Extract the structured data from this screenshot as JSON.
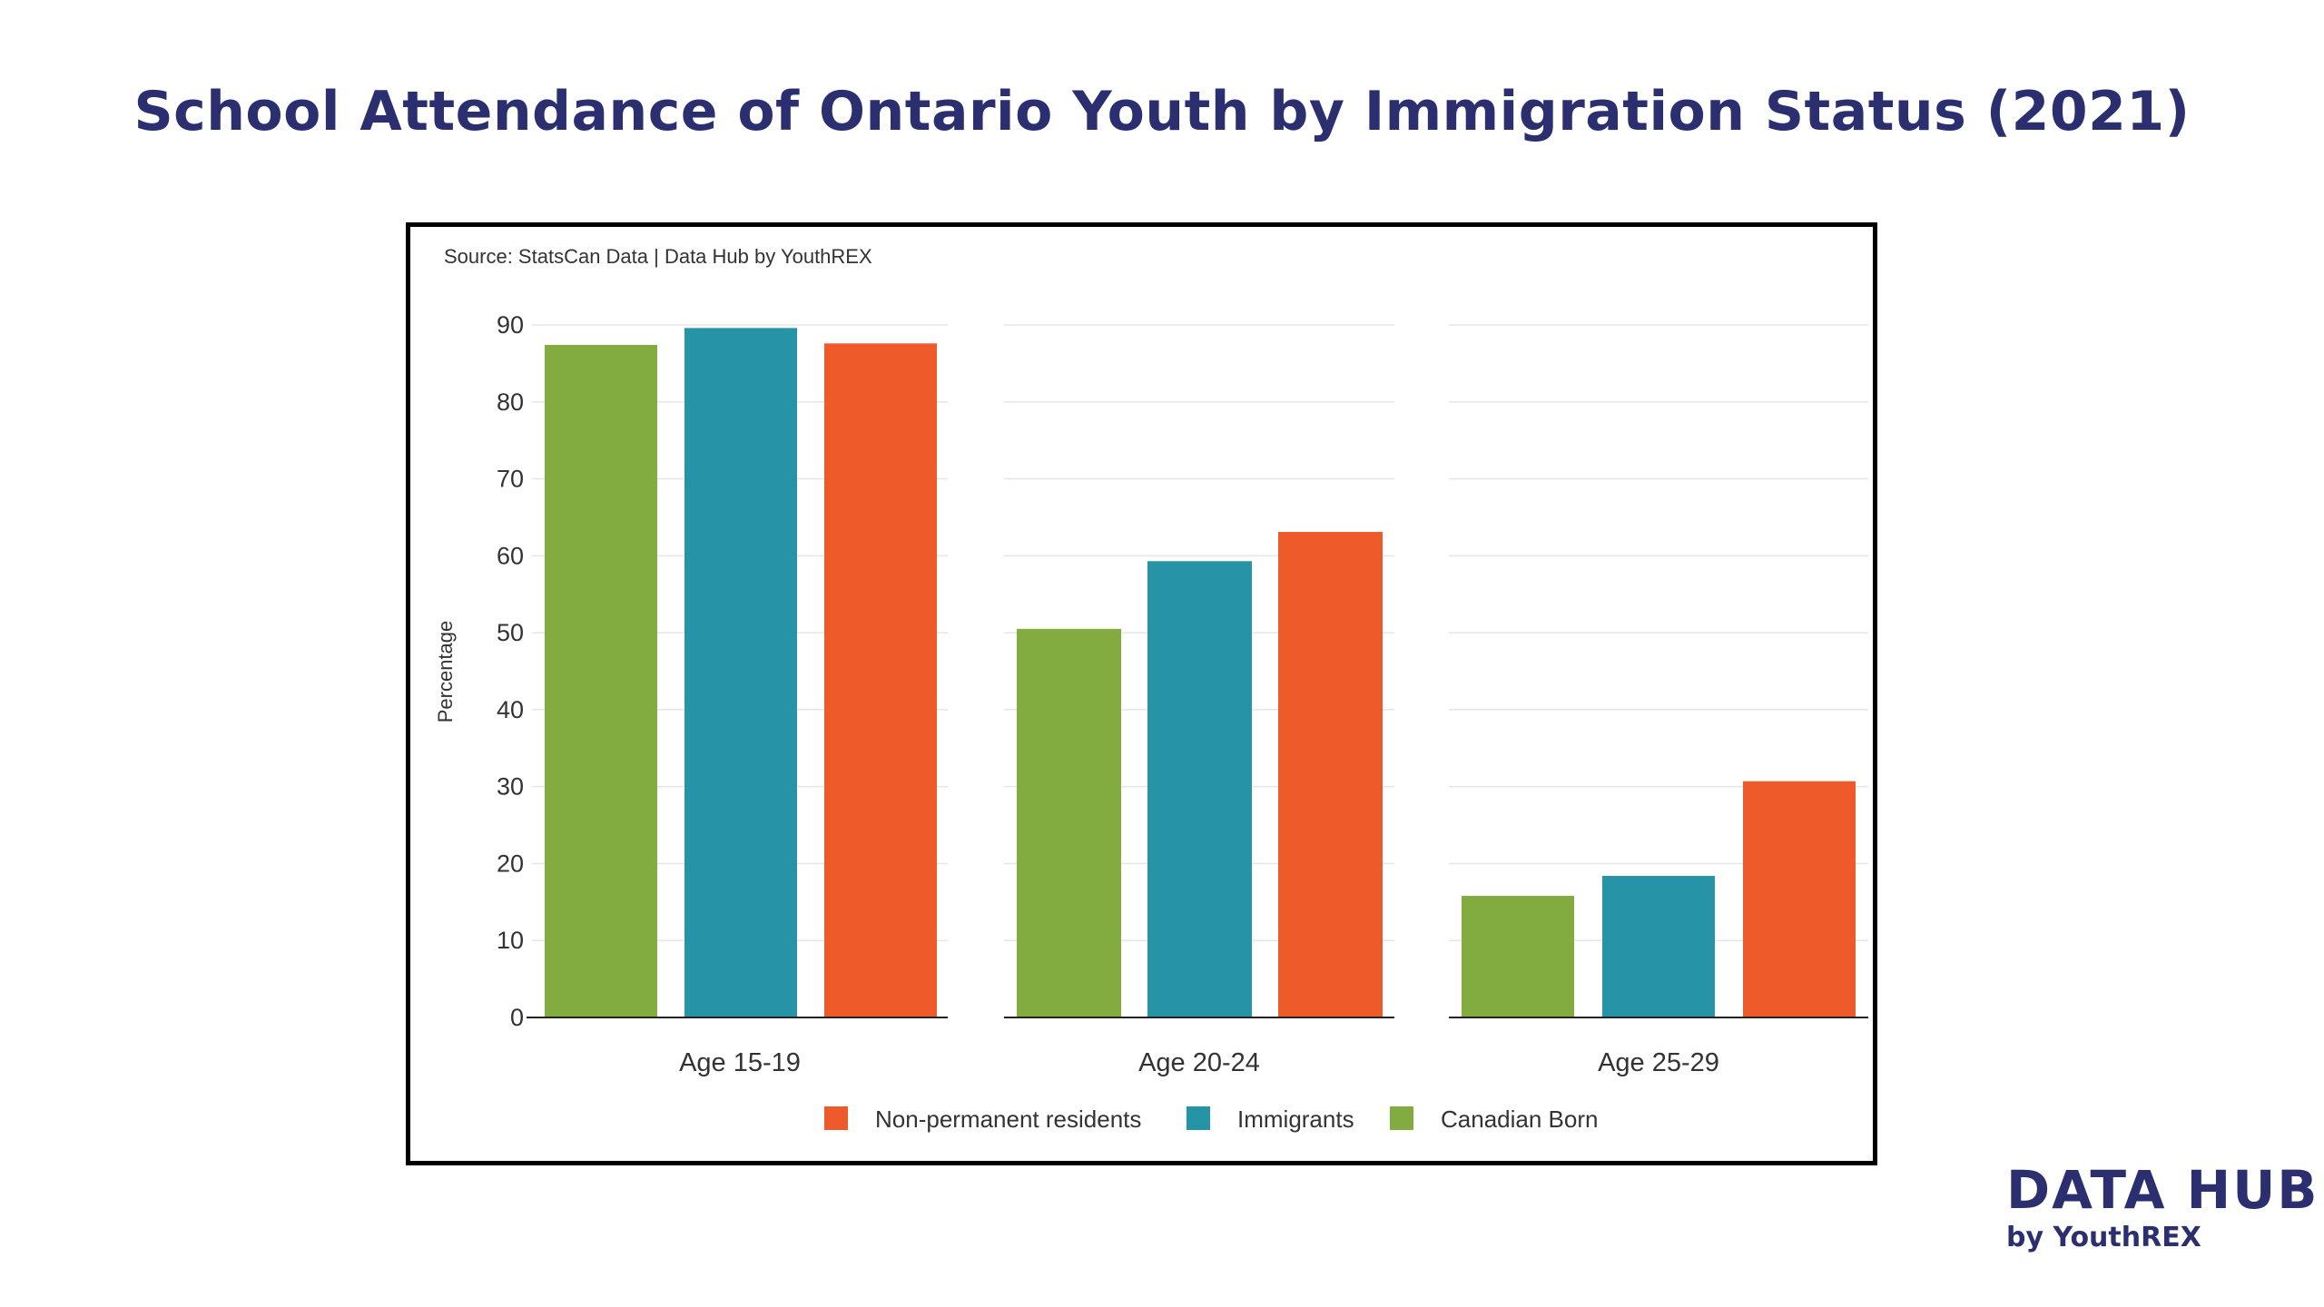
{
  "title": "School Attendance of Ontario Youth by Immigration Status (2021)",
  "brand": {
    "main": "DATA HUB",
    "sub": "by YouthREX"
  },
  "colors": {
    "title": "#2b2f6f",
    "Non-permanent residents": "#ef5a2a",
    "Immigrants": "#2693a6",
    "Canadian Born": "#82ac40"
  },
  "chart_data": {
    "type": "bar",
    "source_note": "Source: StatsCan Data | Data Hub by YouthREX",
    "ylabel": "Percentage",
    "ylim": [
      0,
      90
    ],
    "yticks": [
      0,
      10,
      20,
      30,
      40,
      50,
      60,
      70,
      80,
      90
    ],
    "grid": true,
    "legend_position": "bottom",
    "categories": [
      "Age 15-19",
      "Age 20-24",
      "Age 25-29"
    ],
    "series": [
      {
        "name": "Canadian Born",
        "values": [
          87.4,
          50.5,
          15.8
        ]
      },
      {
        "name": "Immigrants",
        "values": [
          89.6,
          59.3,
          18.4
        ]
      },
      {
        "name": "Non-permanent residents",
        "values": [
          87.6,
          63.1,
          30.7
        ]
      }
    ],
    "legend_order": [
      "Non-permanent residents",
      "Immigrants",
      "Canadian Born"
    ]
  }
}
